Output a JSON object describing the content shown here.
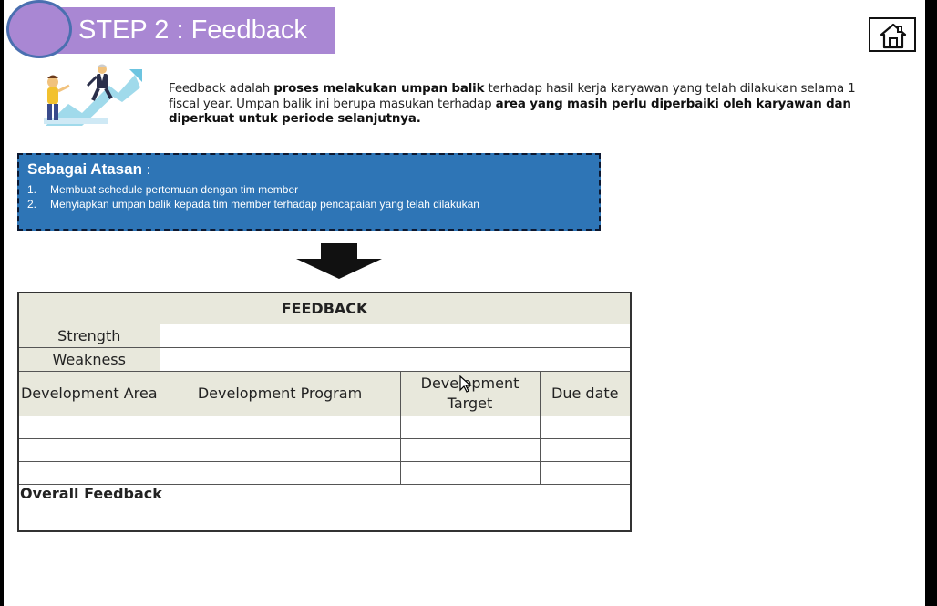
{
  "header": {
    "title": "STEP 2 : Feedback"
  },
  "icons": {
    "home": "home-icon",
    "illustration": "business-growth-illustration",
    "arrow": "down-arrow-icon"
  },
  "intro": {
    "p1": "Feedback adalah ",
    "p2": "proses melakukan umpan balik",
    "p3": " terhadap hasil kerja karyawan yang telah dilakukan selama 1 fiscal year. Umpan balik ini berupa masukan terhadap ",
    "p4": "area yang masih perlu diperbaiki oleh karyawan dan diperkuat untuk periode selanjutnya."
  },
  "atasan": {
    "title": "Sebagai Atasan",
    "colon": ":",
    "items": [
      {
        "num": "1.",
        "text": "Membuat schedule pertemuan dengan tim member"
      },
      {
        "num": "2.",
        "text": "Menyiapkan umpan balik kepada tim member terhadap pencapaian yang telah dilakukan"
      }
    ]
  },
  "form": {
    "title": "FEEDBACK",
    "strength": "Strength",
    "weakness": "Weakness",
    "columns": [
      "Development Area",
      "Development Program",
      "Development Target",
      "Due date"
    ],
    "overall": "Overall Feedback"
  },
  "colors": {
    "title_bg": "#a987d3",
    "circle_border": "#4a6fb0",
    "atasan_bg": "#2e75b6",
    "table_header_bg": "#e8e8dc"
  }
}
